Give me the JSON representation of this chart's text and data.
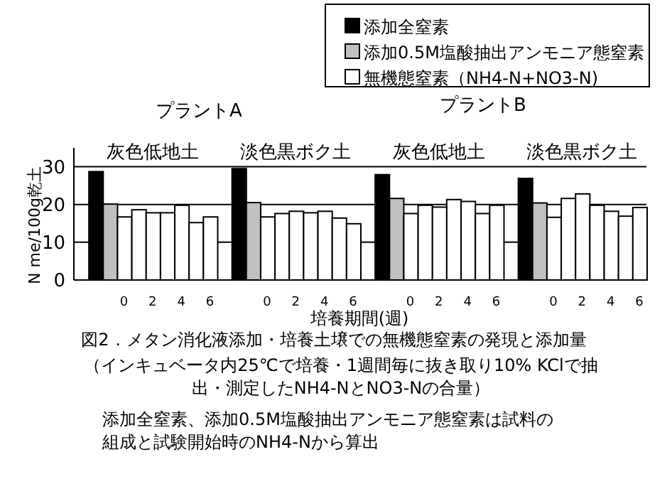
{
  "chart_data": {
    "type": "bar",
    "ylabel": "N me/100g乾土",
    "xlabel": "培養期間(週)",
    "categories": [
      null,
      null,
      null,
      "0",
      null,
      "2",
      null,
      "4",
      null,
      "6",
      null,
      null,
      null,
      "0",
      null,
      "2",
      null,
      "4",
      null,
      "6",
      null,
      null,
      null,
      "0",
      null,
      "2",
      null,
      "4",
      null,
      "6",
      null,
      null,
      null,
      "0",
      null,
      "2",
      null,
      "4",
      null,
      "6"
    ],
    "series": [
      {
        "name": "添加全窒素",
        "color": "#000000",
        "values": [
          null,
          28.7,
          null,
          null,
          null,
          null,
          null,
          null,
          null,
          null,
          null,
          29.5,
          null,
          null,
          null,
          null,
          null,
          null,
          null,
          null,
          null,
          27.9,
          null,
          null,
          null,
          null,
          null,
          null,
          null,
          null,
          null,
          26.9,
          null,
          null,
          null,
          null,
          null,
          null,
          null,
          null
        ]
      },
      {
        "name": "添加0.5M塩酸抽出アンモニア態窒素",
        "color": "#c0c0c0",
        "values": [
          null,
          null,
          20.1,
          null,
          null,
          null,
          null,
          null,
          null,
          null,
          null,
          null,
          20.5,
          null,
          null,
          null,
          null,
          null,
          null,
          null,
          null,
          null,
          21.6,
          null,
          null,
          null,
          null,
          null,
          null,
          null,
          null,
          null,
          20.4,
          null,
          null,
          null,
          null,
          null,
          null,
          null
        ]
      },
      {
        "name": "無機態窒素（NH4-N+NO3-N)",
        "color": "#ffffff",
        "values": [
          null,
          null,
          null,
          16.7,
          18.6,
          17.8,
          17.8,
          19.8,
          15.2,
          16.7,
          null,
          null,
          null,
          16.7,
          17.6,
          18.2,
          17.8,
          18.2,
          16.4,
          14.9,
          null,
          null,
          null,
          17.6,
          19.8,
          19.3,
          21.3,
          20.8,
          17.6,
          19.8,
          null,
          null,
          null,
          16.6,
          21.6,
          22.8,
          19.8,
          18.2,
          16.9,
          19.2
        ]
      }
    ],
    "ylim": [
      0,
      35
    ],
    "yticks": [
      0,
      10,
      20,
      30
    ],
    "grid": "y",
    "legend": "top right",
    "annotations": [
      "灰色低地土",
      "淡色黒ボク土",
      "灰色低地土",
      "淡色黒ボク土",
      "プラントA",
      "プラントB",
      "図2．メタン消化液添加・培養土壌での無機態窒素の発現と添加量",
      "（インキュベータ内25℃で培養・1週間毎に抜き取り10% KClで抽出・測定したNH4-NとNO3-Nの合量）",
      "添加全窒素、添加0.5M塩酸抽出アンモニア態窒素は試料の組成と試験開始時のNH4-Nから算出"
    ]
  }
}
